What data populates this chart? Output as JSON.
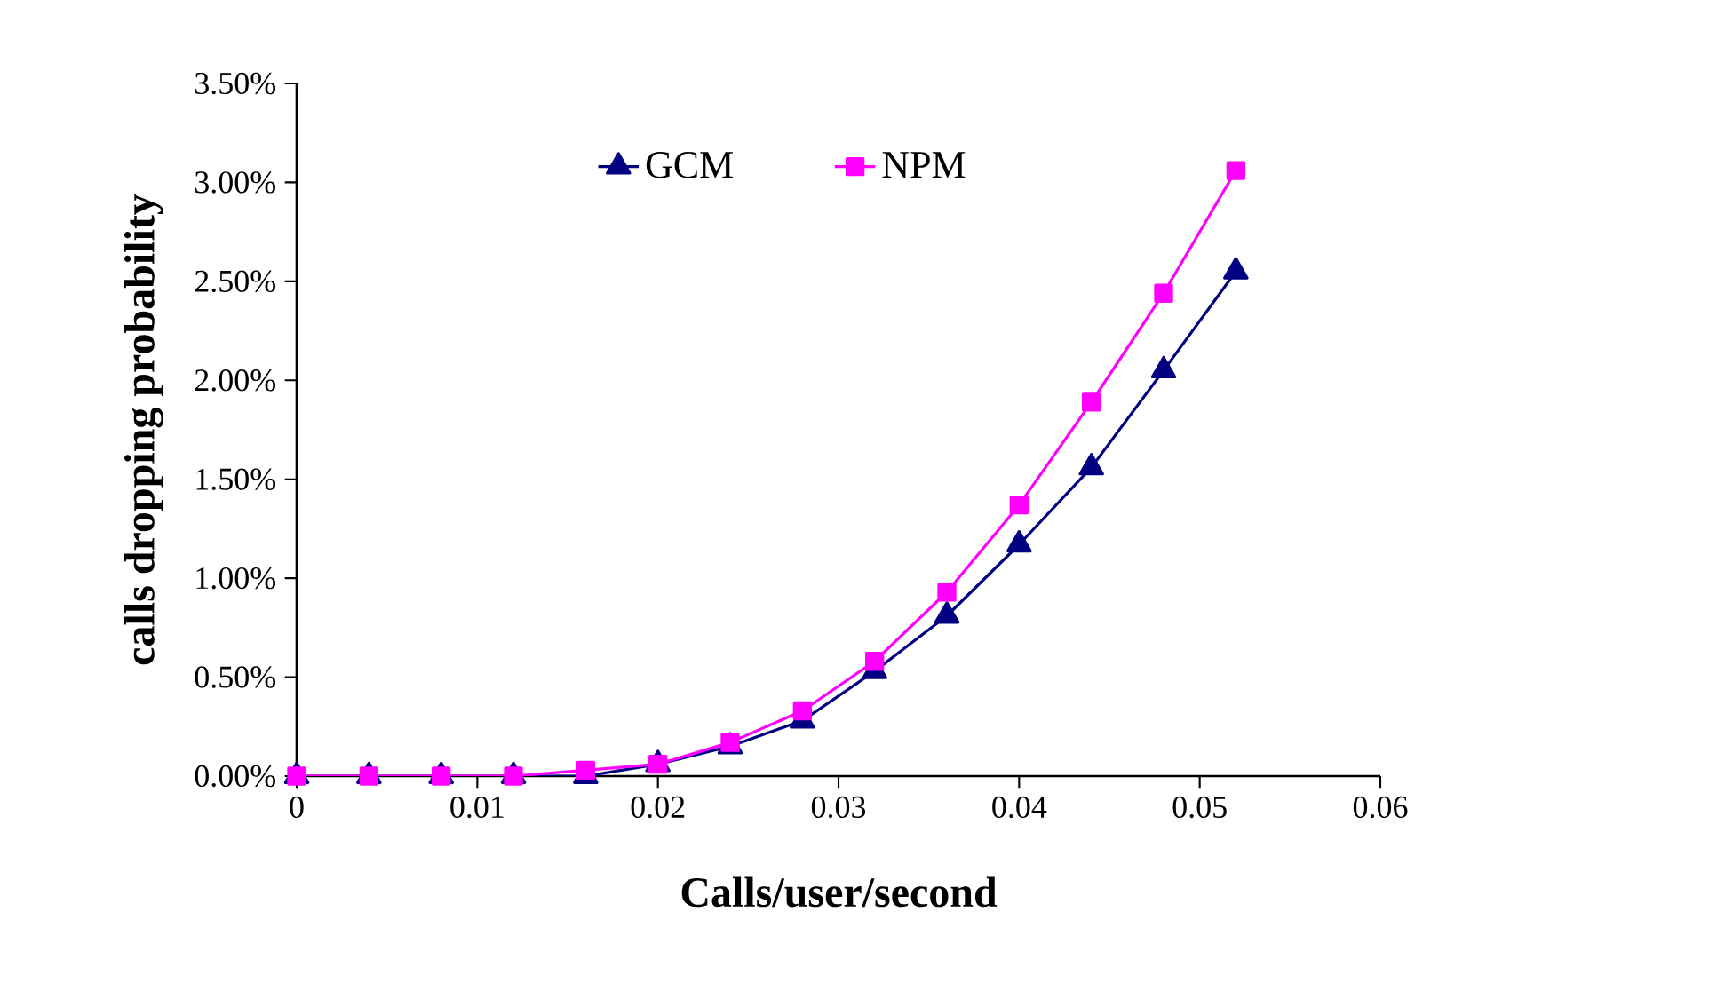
{
  "chart_data": {
    "type": "line",
    "xlabel": "Calls/user/second",
    "ylabel": "calls dropping probability",
    "x": [
      0,
      0.004,
      0.008,
      0.012,
      0.016,
      0.02,
      0.024,
      0.028,
      0.032,
      0.036,
      0.04,
      0.044,
      0.048,
      0.052
    ],
    "series": [
      {
        "name": "GCM",
        "color": "#000080",
        "marker": "triangle",
        "values": [
          0,
          0,
          0,
          0,
          0,
          0.06,
          0.15,
          0.28,
          0.53,
          0.81,
          1.17,
          1.56,
          2.05,
          2.55
        ]
      },
      {
        "name": "NPM",
        "color": "#ff00ff",
        "marker": "square",
        "values": [
          0,
          0,
          0,
          0,
          0.03,
          0.06,
          0.17,
          0.33,
          0.58,
          0.93,
          1.37,
          1.89,
          2.44,
          3.06
        ]
      }
    ],
    "xlim": [
      0,
      0.06
    ],
    "xticks": [
      0,
      0.01,
      0.02,
      0.03,
      0.04,
      0.05,
      0.06
    ],
    "ylim": [
      0,
      3.5
    ],
    "yticks": [
      {
        "value": 0,
        "label": "0.00%"
      },
      {
        "value": 0.5,
        "label": "0.50%"
      },
      {
        "value": 1,
        "label": "1.00%"
      },
      {
        "value": 1.5,
        "label": "1.50%"
      },
      {
        "value": 2,
        "label": "2.00%"
      },
      {
        "value": 2.5,
        "label": "2.50%"
      },
      {
        "value": 3,
        "label": "3.00%"
      },
      {
        "value": 3.5,
        "label": "3.50%"
      }
    ],
    "grid": false,
    "legend": "top",
    "line_style": "solid"
  }
}
